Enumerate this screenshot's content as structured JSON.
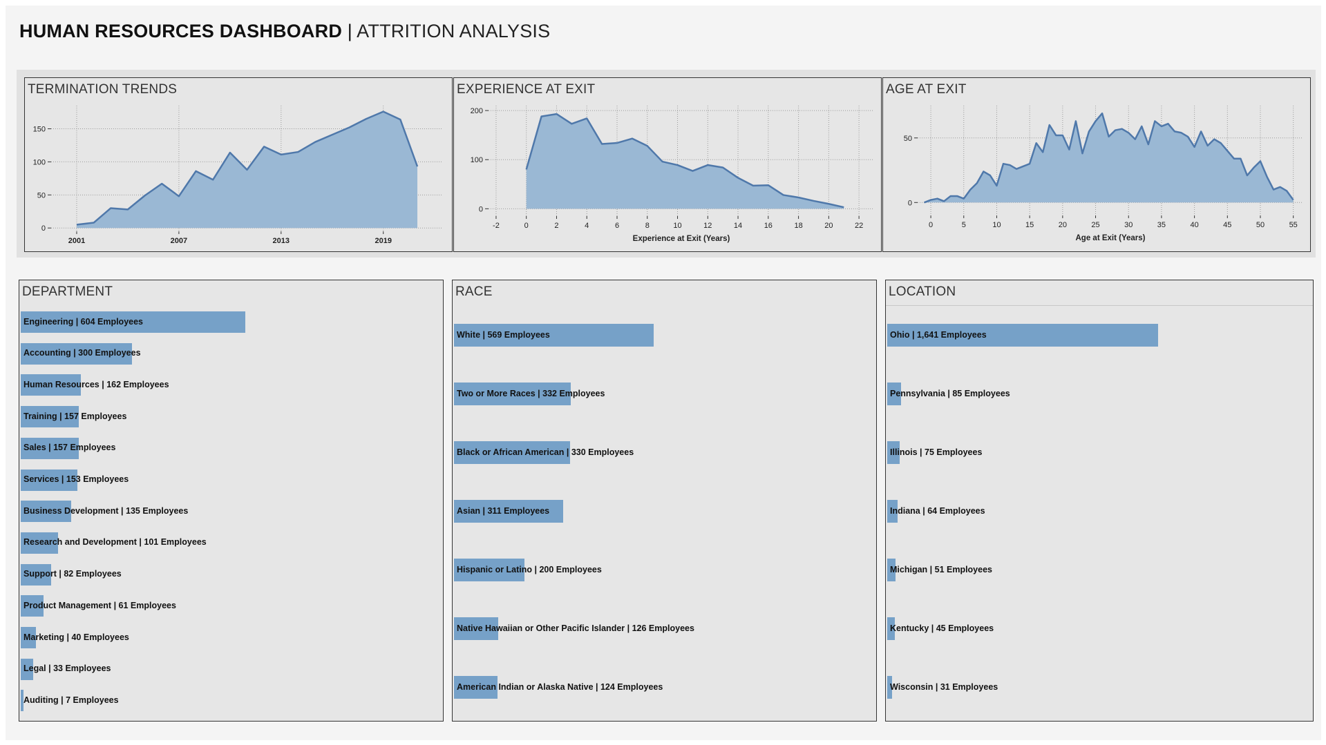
{
  "header": {
    "title_bold": "HUMAN RESOURCES DASHBOARD",
    "separator": "|",
    "title_sub": "ATTRITION ANALYSIS"
  },
  "colors": {
    "area_fill": "#9ab8d4",
    "area_line": "#4f78aa",
    "bar_fill": "#76a1c8",
    "panel_bg": "#e6e6e6",
    "page_bg": "#f4f4f4"
  },
  "panels": {
    "termination": {
      "title": "TERMINATION TRENDS"
    },
    "experience": {
      "title": "EXPERIENCE AT EXIT"
    },
    "age": {
      "title": "AGE AT EXIT"
    },
    "department": {
      "title": "DEPARTMENT"
    },
    "race": {
      "title": "RACE"
    },
    "location": {
      "title": "LOCATION"
    }
  },
  "chart_data": [
    {
      "id": "termination",
      "type": "area",
      "title": "TERMINATION TRENDS",
      "xlabel": "",
      "ylabel": "",
      "xlim": [
        1999.5,
        2022.5
      ],
      "ylim": [
        -5,
        185
      ],
      "x_ticks": [
        2001,
        2007,
        2013,
        2019
      ],
      "y_ticks": [
        0,
        50,
        100,
        150
      ],
      "grid": true,
      "x": [
        2001,
        2002,
        2003,
        2004,
        2005,
        2006,
        2007,
        2008,
        2009,
        2010,
        2011,
        2012,
        2013,
        2014,
        2015,
        2016,
        2017,
        2018,
        2019,
        2020,
        2021
      ],
      "values": [
        5,
        8,
        30,
        28,
        49,
        67,
        48,
        86,
        73,
        114,
        88,
        123,
        111,
        115,
        130,
        141,
        152,
        165,
        176,
        164,
        93
      ]
    },
    {
      "id": "experience",
      "type": "area",
      "title": "EXPERIENCE AT EXIT",
      "xlabel": "Experience at Exit (Years)",
      "ylabel": "",
      "xlim": [
        -2.5,
        23
      ],
      "ylim": [
        -15,
        210
      ],
      "x_ticks": [
        -2,
        0,
        2,
        4,
        6,
        8,
        10,
        12,
        14,
        16,
        18,
        20,
        22
      ],
      "y_ticks": [
        0,
        100,
        200
      ],
      "grid": true,
      "x": [
        0,
        1,
        2,
        3,
        4,
        5,
        6,
        7,
        8,
        9,
        10,
        11,
        12,
        13,
        14,
        15,
        16,
        17,
        18,
        19,
        20,
        21
      ],
      "values": [
        80,
        188,
        193,
        173,
        184,
        132,
        134,
        143,
        128,
        96,
        89,
        77,
        89,
        84,
        63,
        47,
        48,
        28,
        23,
        16,
        10,
        3
      ]
    },
    {
      "id": "age",
      "type": "area",
      "title": "AGE AT EXIT",
      "xlabel": "Age at Exit (Years)",
      "ylabel": "",
      "xlim": [
        -2,
        56.5
      ],
      "ylim": [
        -10,
        75
      ],
      "x_ticks": [
        0,
        5,
        10,
        15,
        20,
        25,
        30,
        35,
        40,
        45,
        50,
        55
      ],
      "y_ticks": [
        0,
        50
      ],
      "grid": true,
      "x": [
        -1,
        0,
        1,
        2,
        3,
        4,
        5,
        6,
        7,
        8,
        9,
        10,
        11,
        12,
        13,
        14,
        15,
        16,
        17,
        18,
        19,
        20,
        21,
        22,
        23,
        24,
        25,
        26,
        27,
        28,
        29,
        30,
        31,
        32,
        33,
        34,
        35,
        36,
        37,
        38,
        39,
        40,
        41,
        42,
        43,
        44,
        45,
        46,
        47,
        48,
        49,
        50,
        51,
        52,
        53,
        54,
        55
      ],
      "values": [
        0,
        2,
        3,
        1,
        5,
        5,
        3,
        10,
        15,
        24,
        21,
        13,
        30,
        29,
        26,
        28,
        30,
        46,
        39,
        60,
        52,
        52,
        41,
        63,
        38,
        55,
        63,
        69,
        51,
        56,
        57,
        54,
        49,
        59,
        45,
        63,
        59,
        61,
        55,
        54,
        51,
        43,
        55,
        44,
        49,
        46,
        40,
        34,
        34,
        21,
        27,
        32,
        20,
        10,
        12,
        9,
        2
      ]
    },
    {
      "id": "department",
      "type": "bar",
      "title": "DEPARTMENT",
      "orientation": "horizontal",
      "categories": [
        "Engineering",
        "Accounting",
        "Human Resources",
        "Training",
        "Sales",
        "Services",
        "Business Development",
        "Research and Development",
        "Support",
        "Product Management",
        "Marketing",
        "Legal",
        "Auditing"
      ],
      "values": [
        604,
        300,
        162,
        157,
        157,
        153,
        135,
        101,
        82,
        61,
        40,
        33,
        7
      ],
      "labels": [
        "Engineering | 604 Employees",
        "Accounting | 300 Employees",
        "Human Resources | 162 Employees",
        "Training | 157 Employees",
        "Sales | 157 Employees",
        "Services | 153 Employees",
        "Business Development | 135 Employees",
        "Research and Development | 101 Employees",
        "Support | 82 Employees",
        "Product Management | 61 Employees",
        "Marketing | 40 Employees",
        "Legal | 33 Employees",
        "Auditing | 7 Employees"
      ]
    },
    {
      "id": "race",
      "type": "bar",
      "title": "RACE",
      "orientation": "horizontal",
      "categories": [
        "White",
        "Two or More Races",
        "Black or African American",
        "Asian",
        "Hispanic or Latino",
        "Native Hawaiian or Other Pacific Islander",
        "American Indian or Alaska Native"
      ],
      "values": [
        569,
        332,
        330,
        311,
        200,
        126,
        124
      ],
      "labels": [
        "White | 569 Employees",
        "Two or More Races | 332 Employees",
        "Black or African American | 330 Employees",
        "Asian | 311 Employees",
        "Hispanic or Latino | 200 Employees",
        "Native Hawaiian or Other Pacific Islander | 126 Employees",
        "American Indian or Alaska Native | 124 Employees"
      ]
    },
    {
      "id": "location",
      "type": "bar",
      "title": "LOCATION",
      "orientation": "horizontal",
      "categories": [
        "Ohio",
        "Pennsylvania",
        "Illinois",
        "Indiana",
        "Michigan",
        "Kentucky",
        "Wisconsin"
      ],
      "values": [
        1641,
        85,
        75,
        64,
        51,
        45,
        31
      ],
      "labels": [
        "Ohio | 1,641 Employees",
        "Pennsylvania | 85 Employees",
        "Illinois | 75 Employees",
        "Indiana | 64 Employees",
        "Michigan | 51 Employees",
        "Kentucky | 45 Employees",
        "Wisconsin | 31 Employees"
      ]
    }
  ]
}
